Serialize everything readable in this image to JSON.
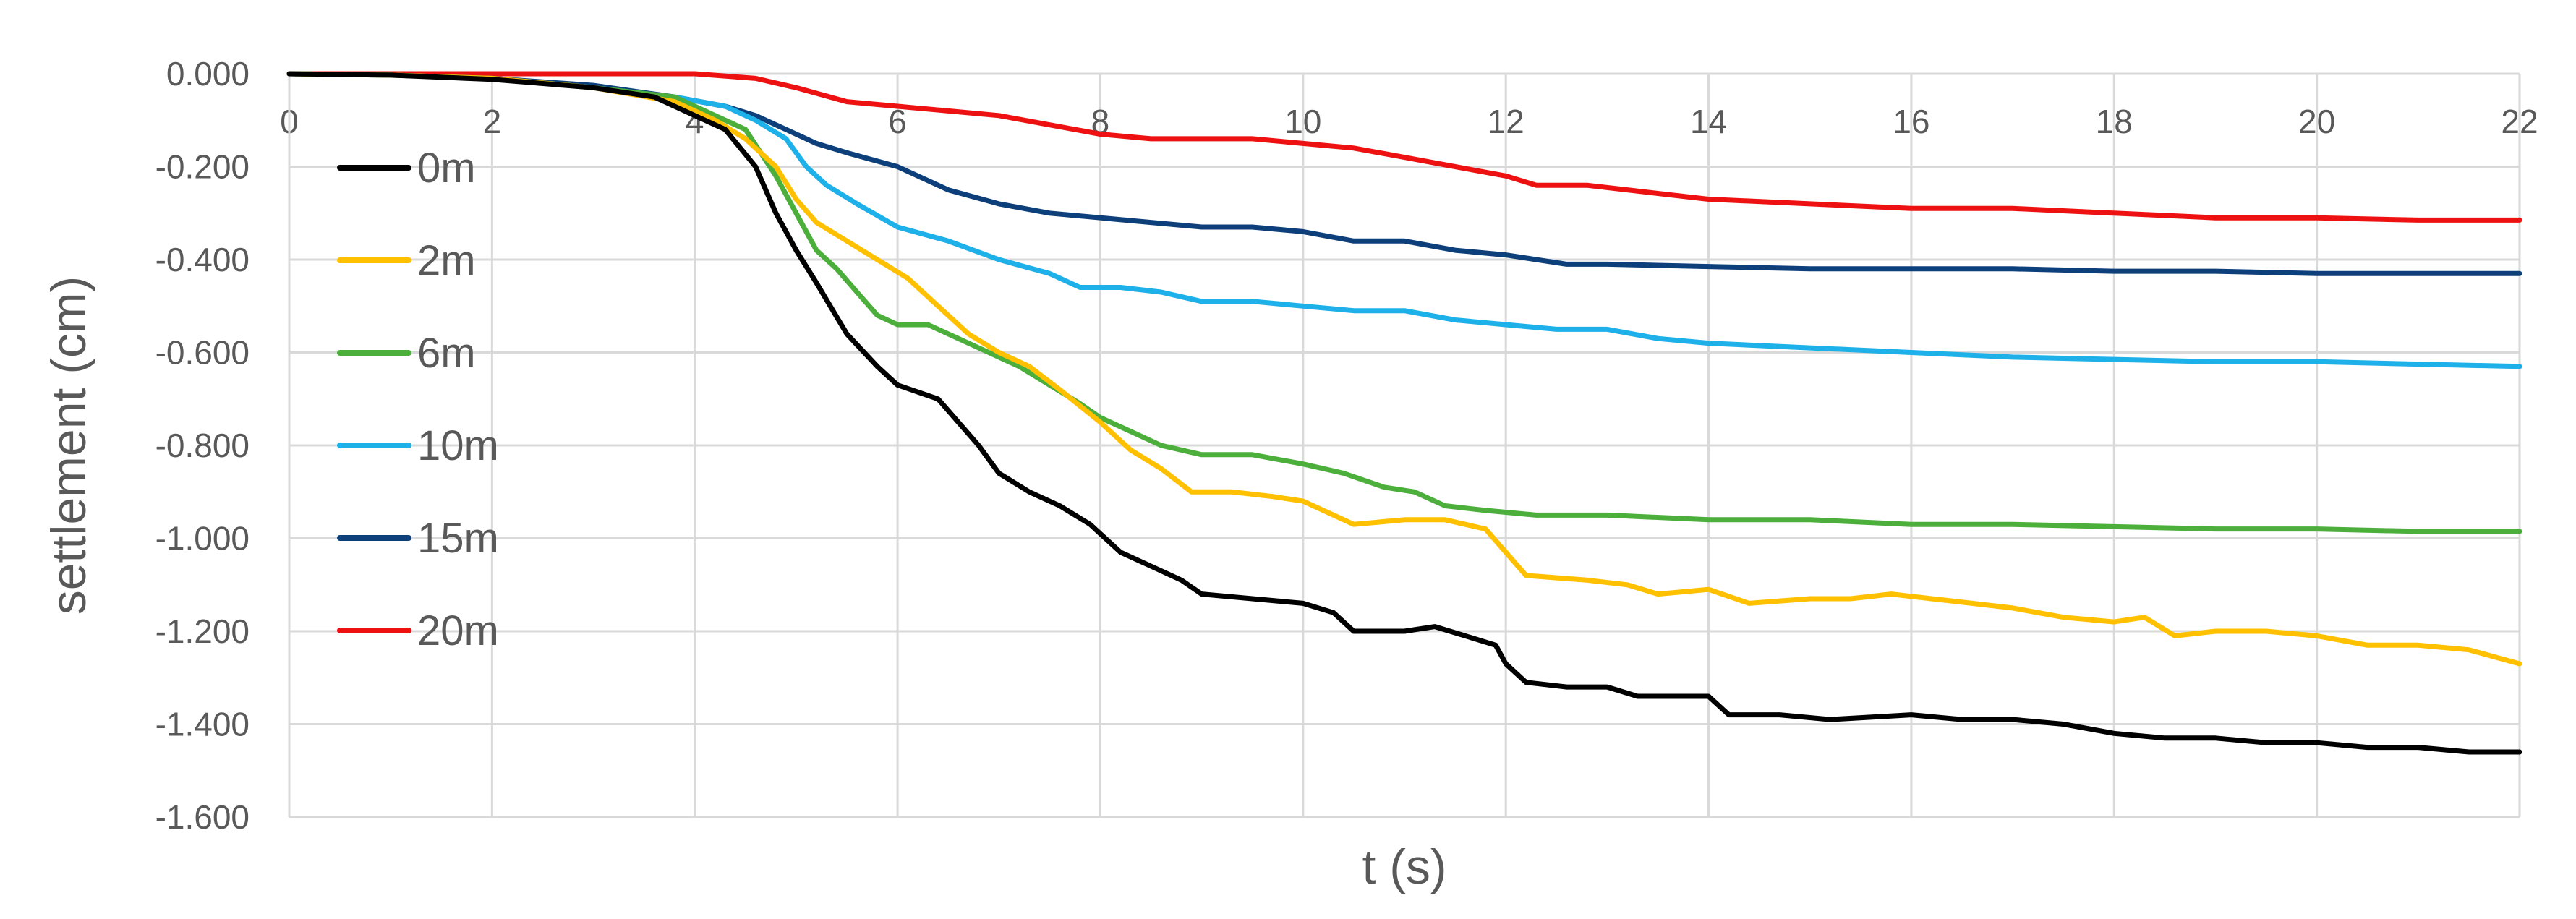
{
  "chart_data": {
    "type": "line",
    "title": "",
    "xlabel": "t (s)",
    "ylabel": "settlement (cm)",
    "xlim": [
      0,
      22
    ],
    "ylim": [
      -1.6,
      0.0
    ],
    "xticks": [
      0,
      2,
      4,
      6,
      8,
      10,
      12,
      14,
      16,
      18,
      20,
      22
    ],
    "yticks": [
      0.0,
      -0.2,
      -0.4,
      -0.6,
      -0.8,
      -1.0,
      -1.2,
      -1.4,
      -1.6
    ],
    "ytick_labels": [
      "0.000",
      "-0.200",
      "-0.400",
      "-0.600",
      "-0.800",
      "-1.000",
      "-1.200",
      "-1.400",
      "-1.600"
    ],
    "grid": "vertical",
    "legend_position": "left",
    "series": [
      {
        "name": "0m",
        "color": "#000000",
        "points": [
          [
            0,
            0
          ],
          [
            1,
            -0.003
          ],
          [
            2,
            -0.012
          ],
          [
            3,
            -0.03
          ],
          [
            3.6,
            -0.05
          ],
          [
            4,
            -0.09
          ],
          [
            4.3,
            -0.12
          ],
          [
            4.6,
            -0.2
          ],
          [
            4.8,
            -0.3
          ],
          [
            5,
            -0.38
          ],
          [
            5.2,
            -0.45
          ],
          [
            5.5,
            -0.56
          ],
          [
            5.8,
            -0.63
          ],
          [
            6,
            -0.67
          ],
          [
            6.4,
            -0.7
          ],
          [
            6.6,
            -0.75
          ],
          [
            6.8,
            -0.8
          ],
          [
            7,
            -0.86
          ],
          [
            7.3,
            -0.9
          ],
          [
            7.6,
            -0.93
          ],
          [
            7.9,
            -0.97
          ],
          [
            8.2,
            -1.03
          ],
          [
            8.5,
            -1.06
          ],
          [
            8.8,
            -1.09
          ],
          [
            9,
            -1.12
          ],
          [
            9.5,
            -1.13
          ],
          [
            10,
            -1.14
          ],
          [
            10.3,
            -1.16
          ],
          [
            10.5,
            -1.2
          ],
          [
            11,
            -1.2
          ],
          [
            11.3,
            -1.19
          ],
          [
            11.6,
            -1.21
          ],
          [
            11.9,
            -1.23
          ],
          [
            12,
            -1.27
          ],
          [
            12.2,
            -1.31
          ],
          [
            12.6,
            -1.32
          ],
          [
            13,
            -1.32
          ],
          [
            13.3,
            -1.34
          ],
          [
            13.7,
            -1.34
          ],
          [
            14,
            -1.34
          ],
          [
            14.2,
            -1.38
          ],
          [
            14.7,
            -1.38
          ],
          [
            15.2,
            -1.39
          ],
          [
            16,
            -1.38
          ],
          [
            16.5,
            -1.39
          ],
          [
            17,
            -1.39
          ],
          [
            17.5,
            -1.4
          ],
          [
            18,
            -1.42
          ],
          [
            18.5,
            -1.43
          ],
          [
            19,
            -1.43
          ],
          [
            19.5,
            -1.44
          ],
          [
            20,
            -1.44
          ],
          [
            20.5,
            -1.45
          ],
          [
            21,
            -1.45
          ],
          [
            21.5,
            -1.46
          ],
          [
            22,
            -1.46
          ]
        ]
      },
      {
        "name": "2m",
        "color": "#ffc000",
        "points": [
          [
            0,
            0
          ],
          [
            1,
            -0.003
          ],
          [
            2,
            -0.01
          ],
          [
            3,
            -0.03
          ],
          [
            3.8,
            -0.06
          ],
          [
            4.2,
            -0.1
          ],
          [
            4.5,
            -0.14
          ],
          [
            4.8,
            -0.2
          ],
          [
            5,
            -0.27
          ],
          [
            5.2,
            -0.32
          ],
          [
            5.5,
            -0.36
          ],
          [
            5.8,
            -0.4
          ],
          [
            6.1,
            -0.44
          ],
          [
            6.4,
            -0.5
          ],
          [
            6.7,
            -0.56
          ],
          [
            7,
            -0.6
          ],
          [
            7.3,
            -0.63
          ],
          [
            7.6,
            -0.68
          ],
          [
            8,
            -0.75
          ],
          [
            8.3,
            -0.81
          ],
          [
            8.6,
            -0.85
          ],
          [
            8.9,
            -0.9
          ],
          [
            9.3,
            -0.9
          ],
          [
            9.7,
            -0.91
          ],
          [
            10,
            -0.92
          ],
          [
            10.2,
            -0.94
          ],
          [
            10.5,
            -0.97
          ],
          [
            11,
            -0.96
          ],
          [
            11.4,
            -0.96
          ],
          [
            11.8,
            -0.98
          ],
          [
            12,
            -1.03
          ],
          [
            12.2,
            -1.08
          ],
          [
            12.8,
            -1.09
          ],
          [
            13.2,
            -1.1
          ],
          [
            13.5,
            -1.12
          ],
          [
            14,
            -1.11
          ],
          [
            14.4,
            -1.14
          ],
          [
            15,
            -1.13
          ],
          [
            15.4,
            -1.13
          ],
          [
            15.8,
            -1.12
          ],
          [
            16.2,
            -1.13
          ],
          [
            16.6,
            -1.14
          ],
          [
            17,
            -1.15
          ],
          [
            17.5,
            -1.17
          ],
          [
            18,
            -1.18
          ],
          [
            18.3,
            -1.17
          ],
          [
            18.6,
            -1.21
          ],
          [
            19,
            -1.2
          ],
          [
            19.5,
            -1.2
          ],
          [
            20,
            -1.21
          ],
          [
            20.5,
            -1.23
          ],
          [
            21,
            -1.23
          ],
          [
            21.5,
            -1.24
          ],
          [
            22,
            -1.27
          ]
        ]
      },
      {
        "name": "6m",
        "color": "#4caf3b",
        "points": [
          [
            0,
            0
          ],
          [
            1,
            -0.003
          ],
          [
            2,
            -0.01
          ],
          [
            3,
            -0.03
          ],
          [
            3.8,
            -0.05
          ],
          [
            4.2,
            -0.09
          ],
          [
            4.5,
            -0.12
          ],
          [
            4.8,
            -0.22
          ],
          [
            5,
            -0.3
          ],
          [
            5.2,
            -0.38
          ],
          [
            5.4,
            -0.42
          ],
          [
            5.6,
            -0.47
          ],
          [
            5.8,
            -0.52
          ],
          [
            6,
            -0.54
          ],
          [
            6.3,
            -0.54
          ],
          [
            6.6,
            -0.57
          ],
          [
            6.9,
            -0.6
          ],
          [
            7.2,
            -0.63
          ],
          [
            7.5,
            -0.67
          ],
          [
            7.8,
            -0.71
          ],
          [
            8,
            -0.74
          ],
          [
            8.3,
            -0.77
          ],
          [
            8.6,
            -0.8
          ],
          [
            9,
            -0.82
          ],
          [
            9.5,
            -0.82
          ],
          [
            10,
            -0.84
          ],
          [
            10.4,
            -0.86
          ],
          [
            10.8,
            -0.89
          ],
          [
            11.1,
            -0.9
          ],
          [
            11.4,
            -0.93
          ],
          [
            11.8,
            -0.94
          ],
          [
            12.3,
            -0.95
          ],
          [
            13,
            -0.95
          ],
          [
            14,
            -0.96
          ],
          [
            15,
            -0.96
          ],
          [
            16,
            -0.97
          ],
          [
            17,
            -0.97
          ],
          [
            18,
            -0.975
          ],
          [
            19,
            -0.98
          ],
          [
            20,
            -0.98
          ],
          [
            21,
            -0.985
          ],
          [
            22,
            -0.985
          ]
        ]
      },
      {
        "name": "10m",
        "color": "#1eb0e8",
        "points": [
          [
            0,
            0
          ],
          [
            1,
            -0.003
          ],
          [
            2,
            -0.01
          ],
          [
            3,
            -0.03
          ],
          [
            3.8,
            -0.05
          ],
          [
            4.3,
            -0.07
          ],
          [
            4.6,
            -0.1
          ],
          [
            4.9,
            -0.14
          ],
          [
            5.1,
            -0.2
          ],
          [
            5.3,
            -0.24
          ],
          [
            5.6,
            -0.28
          ],
          [
            6,
            -0.33
          ],
          [
            6.5,
            -0.36
          ],
          [
            7,
            -0.4
          ],
          [
            7.5,
            -0.43
          ],
          [
            7.8,
            -0.46
          ],
          [
            8.2,
            -0.46
          ],
          [
            8.6,
            -0.47
          ],
          [
            9,
            -0.49
          ],
          [
            9.5,
            -0.49
          ],
          [
            10,
            -0.5
          ],
          [
            10.5,
            -0.51
          ],
          [
            11,
            -0.51
          ],
          [
            11.5,
            -0.53
          ],
          [
            12,
            -0.54
          ],
          [
            12.5,
            -0.55
          ],
          [
            13,
            -0.55
          ],
          [
            13.5,
            -0.57
          ],
          [
            14,
            -0.58
          ],
          [
            15,
            -0.59
          ],
          [
            16,
            -0.6
          ],
          [
            17,
            -0.61
          ],
          [
            18,
            -0.615
          ],
          [
            19,
            -0.62
          ],
          [
            20,
            -0.62
          ],
          [
            21,
            -0.625
          ],
          [
            22,
            -0.63
          ]
        ]
      },
      {
        "name": "15m",
        "color": "#0d3f7a",
        "points": [
          [
            0,
            0
          ],
          [
            1,
            -0.003
          ],
          [
            2,
            -0.01
          ],
          [
            3,
            -0.025
          ],
          [
            3.8,
            -0.05
          ],
          [
            4.3,
            -0.07
          ],
          [
            4.6,
            -0.09
          ],
          [
            4.9,
            -0.12
          ],
          [
            5.2,
            -0.15
          ],
          [
            5.5,
            -0.17
          ],
          [
            6,
            -0.2
          ],
          [
            6.5,
            -0.25
          ],
          [
            7,
            -0.28
          ],
          [
            7.5,
            -0.3
          ],
          [
            8,
            -0.31
          ],
          [
            8.5,
            -0.32
          ],
          [
            9,
            -0.33
          ],
          [
            9.5,
            -0.33
          ],
          [
            10,
            -0.34
          ],
          [
            10.5,
            -0.36
          ],
          [
            11,
            -0.36
          ],
          [
            11.5,
            -0.38
          ],
          [
            12,
            -0.39
          ],
          [
            12.3,
            -0.4
          ],
          [
            12.6,
            -0.41
          ],
          [
            13,
            -0.41
          ],
          [
            14,
            -0.415
          ],
          [
            15,
            -0.42
          ],
          [
            16,
            -0.42
          ],
          [
            17,
            -0.42
          ],
          [
            18,
            -0.425
          ],
          [
            19,
            -0.425
          ],
          [
            20,
            -0.43
          ],
          [
            21,
            -0.43
          ],
          [
            22,
            -0.43
          ]
        ]
      },
      {
        "name": "20m",
        "color": "#ee1111",
        "points": [
          [
            0,
            0
          ],
          [
            1,
            0
          ],
          [
            2,
            0
          ],
          [
            3,
            0
          ],
          [
            4,
            0
          ],
          [
            4.6,
            -0.01
          ],
          [
            5,
            -0.03
          ],
          [
            5.5,
            -0.06
          ],
          [
            6,
            -0.07
          ],
          [
            6.5,
            -0.08
          ],
          [
            7,
            -0.09
          ],
          [
            7.5,
            -0.11
          ],
          [
            8,
            -0.13
          ],
          [
            8.5,
            -0.14
          ],
          [
            9,
            -0.14
          ],
          [
            9.5,
            -0.14
          ],
          [
            10,
            -0.15
          ],
          [
            10.5,
            -0.16
          ],
          [
            11,
            -0.18
          ],
          [
            11.5,
            -0.2
          ],
          [
            12,
            -0.22
          ],
          [
            12.3,
            -0.24
          ],
          [
            12.8,
            -0.24
          ],
          [
            13.2,
            -0.25
          ],
          [
            13.6,
            -0.26
          ],
          [
            14,
            -0.27
          ],
          [
            15,
            -0.28
          ],
          [
            16,
            -0.29
          ],
          [
            17,
            -0.29
          ],
          [
            18,
            -0.3
          ],
          [
            19,
            -0.31
          ],
          [
            20,
            -0.31
          ],
          [
            21,
            -0.315
          ],
          [
            22,
            -0.315
          ]
        ]
      }
    ]
  }
}
